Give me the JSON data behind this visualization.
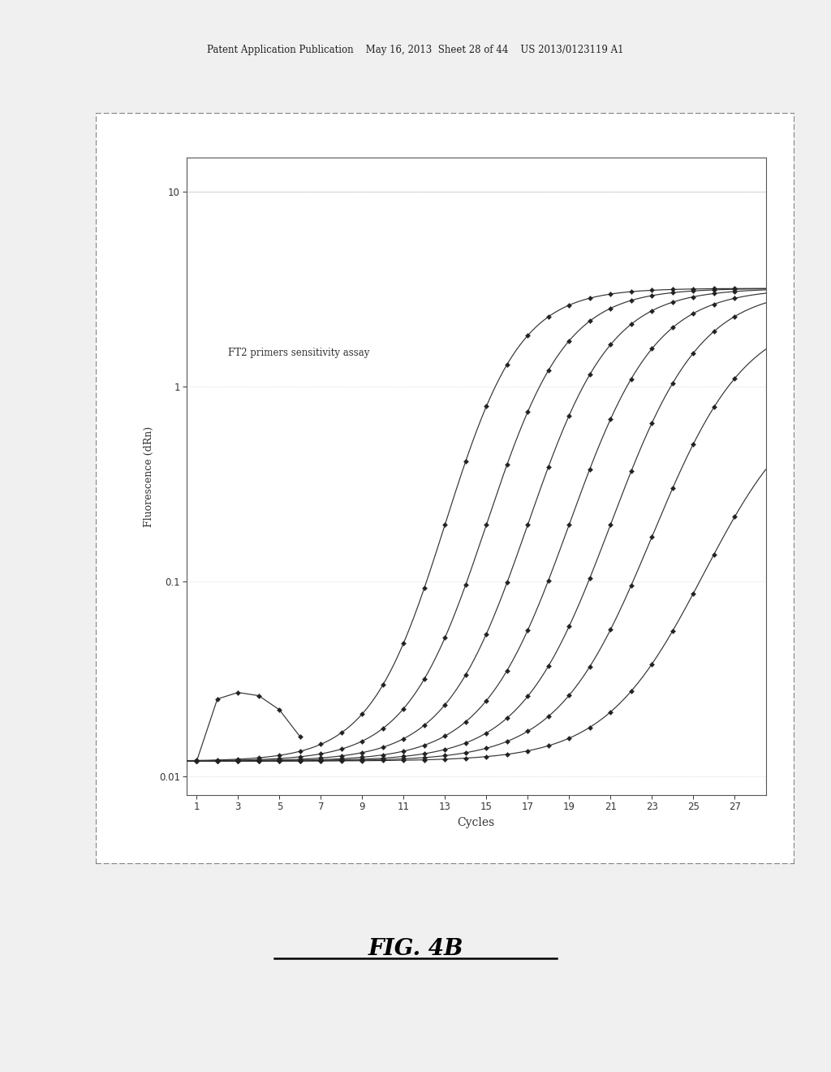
{
  "title_header": "Patent Application Publication    May 16, 2013  Sheet 28 of 44    US 2013/0123119 A1",
  "fig_label": "FIG. 4B",
  "annotation": "FT2 primers sensitivity assay",
  "xlabel": "Cycles",
  "ylabel": "Fluorescence (dRn)",
  "ylim_log": [
    0.008,
    15
  ],
  "xlim": [
    0.5,
    28.5
  ],
  "yticks": [
    0.01,
    0.1,
    1,
    10
  ],
  "xticks": [
    1,
    3,
    5,
    7,
    9,
    11,
    13,
    15,
    17,
    19,
    21,
    23,
    25,
    27
  ],
  "background_color": "#f0f0f0",
  "plot_bg": "#ffffff",
  "outer_box_bg": "#ffffff",
  "line_color": "#333333",
  "marker_color": "#222222",
  "curve_midpoints": [
    13.0,
    15.0,
    17.0,
    19.0,
    21.0,
    23.0,
    25.5
  ],
  "curve_slopes": [
    0.55,
    0.52,
    0.5,
    0.48,
    0.46,
    0.44,
    0.42
  ],
  "curve_tops": [
    3.2,
    3.2,
    3.2,
    3.2,
    3.2,
    2.4,
    1.0
  ],
  "curve_bottom": 0.012,
  "noise_x": [
    1,
    2,
    3,
    4,
    5,
    6
  ],
  "noise_y": [
    0.012,
    0.025,
    0.027,
    0.026,
    0.022,
    0.016
  ]
}
